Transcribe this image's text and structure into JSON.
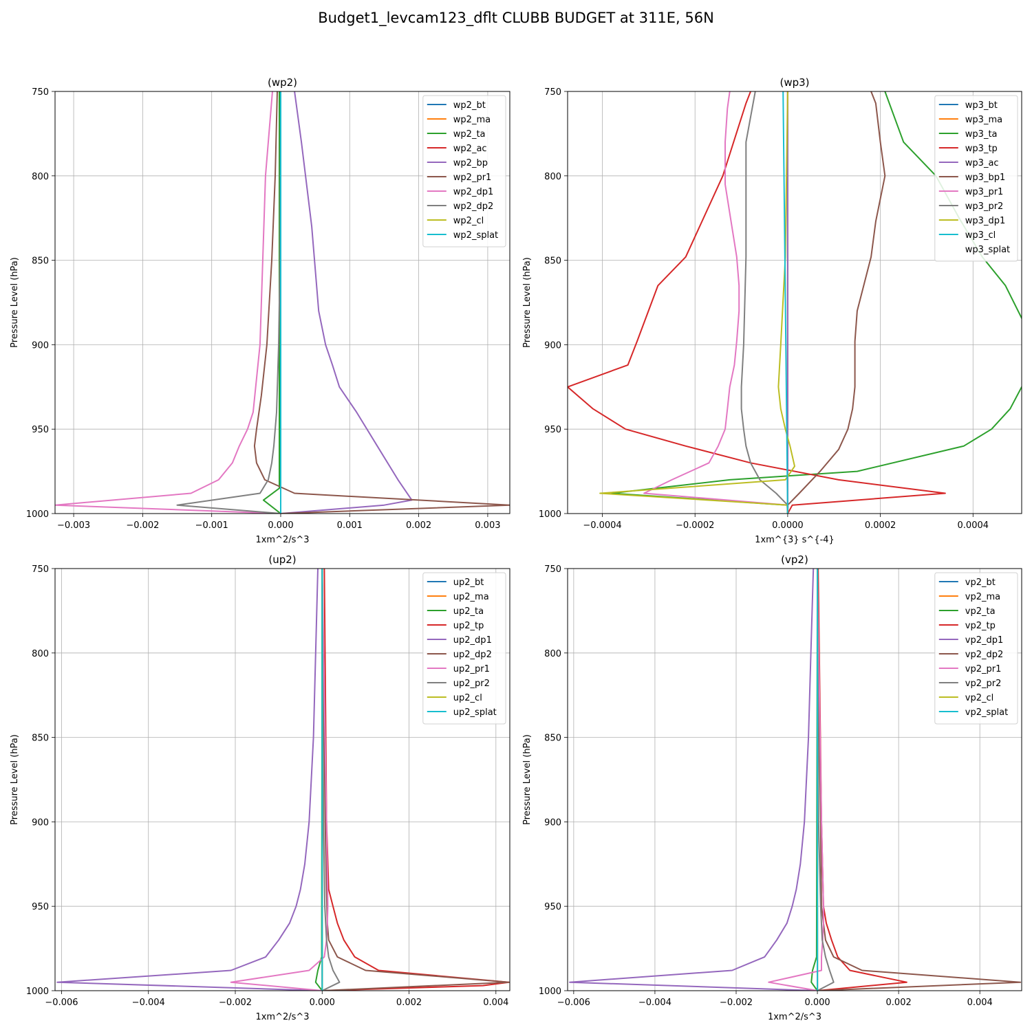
{
  "figure": {
    "title": "Budget1_levcam123_dflt CLUBB BUDGET at 311E, 56N"
  },
  "colors": [
    "#1f77b4",
    "#ff7f0e",
    "#2ca02c",
    "#d62728",
    "#9467bd",
    "#8c564b",
    "#e377c2",
    "#7f7f7f",
    "#bcbd22",
    "#17becf"
  ],
  "chart_data": [
    {
      "type": "line",
      "title": "(wp2)",
      "xlabel": "1xm^2/s^3",
      "ylabel": "Pressure Level (hPa)",
      "xlim": [
        -0.00327,
        0.00332
      ],
      "ylim": [
        1000,
        750
      ],
      "xticks": [
        -0.003,
        -0.002,
        -0.001,
        0.0,
        0.001,
        0.002,
        0.003
      ],
      "xtick_labels": [
        "−0.003",
        "−0.002",
        "−0.001",
        "0.000",
        "0.001",
        "0.002",
        "0.003"
      ],
      "yticks": [
        750,
        800,
        850,
        900,
        950,
        1000
      ],
      "ytick_labels": [
        "750",
        "800",
        "850",
        "900",
        "950",
        "1000"
      ],
      "grid": true,
      "legend": "top-right",
      "series": [
        {
          "name": "wp2_bt",
          "p": [
            750,
            1000
          ],
          "x": [
            0.0,
            0.0
          ]
        },
        {
          "name": "wp2_ma",
          "p": [
            750,
            1000
          ],
          "x": [
            0.0,
            0.0
          ]
        },
        {
          "name": "wp2_ta",
          "p": [
            750,
            985,
            992,
            1000
          ],
          "x": [
            -2e-05,
            -2e-05,
            -0.00025,
            0.0
          ]
        },
        {
          "name": "wp2_ac",
          "p": [
            750,
            1000
          ],
          "x": [
            0.0,
            0.0
          ]
        },
        {
          "name": "wp2_bp",
          "p": [
            750,
            780,
            830,
            880,
            900,
            912,
            925,
            940,
            960,
            980,
            992,
            995,
            1000
          ],
          "x": [
            0.0002,
            0.0003,
            0.00045,
            0.00055,
            0.00065,
            0.00075,
            0.00085,
            0.0011,
            0.0014,
            0.0017,
            0.0019,
            0.0015,
            0.0
          ],
          "color": "#9467bd"
        },
        {
          "name": "wp2_pr1",
          "p": [
            750,
            800,
            850,
            900,
            930,
            950,
            960,
            970,
            980,
            988,
            995,
            1000
          ],
          "x": [
            -5e-05,
            -8e-05,
            -0.00013,
            -0.0002,
            -0.00028,
            -0.00035,
            -0.00038,
            -0.00035,
            -0.00023,
            0.0002,
            0.00332,
            0.0
          ],
          "color": "#8c564b"
        },
        {
          "name": "wp2_dp1",
          "p": [
            750,
            800,
            850,
            900,
            940,
            950,
            960,
            970,
            980,
            988,
            995,
            1000
          ],
          "x": [
            -0.00012,
            -0.00022,
            -0.00026,
            -0.0003,
            -0.0004,
            -0.00048,
            -0.0006,
            -0.0007,
            -0.0009,
            -0.0013,
            -0.00327,
            0.0
          ],
          "color": "#e377c2"
        },
        {
          "name": "wp2_dp2",
          "p": [
            750,
            850,
            900,
            940,
            960,
            970,
            980,
            988,
            995,
            1000
          ],
          "x": [
            0.0,
            -1e-05,
            -3e-05,
            -6e-05,
            -0.0001,
            -0.00013,
            -0.00018,
            -0.0003,
            -0.0015,
            0.0
          ],
          "color": "#7f7f7f"
        },
        {
          "name": "wp2_cl",
          "p": [
            750,
            1000
          ],
          "x": [
            0.0,
            0.0
          ]
        },
        {
          "name": "wp2_splat",
          "p": [
            750,
            1000
          ],
          "x": [
            0.0,
            0.0
          ]
        }
      ]
    },
    {
      "type": "line",
      "title": "(wp3)",
      "xlabel": "1xm^{3} s^{-4}",
      "ylabel": "Pressure Level (hPa)",
      "xlim": [
        -0.000475,
        0.000505
      ],
      "ylim": [
        1000,
        750
      ],
      "xticks": [
        -0.0004,
        -0.0002,
        0.0,
        0.0002,
        0.0004
      ],
      "xtick_labels": [
        "−0.0004",
        "−0.0002",
        "0.0000",
        "0.0002",
        "0.0004"
      ],
      "yticks": [
        750,
        800,
        850,
        900,
        950,
        1000
      ],
      "ytick_labels": [
        "750",
        "800",
        "850",
        "900",
        "950",
        "1000"
      ],
      "grid": true,
      "legend": "top-right",
      "series": [
        {
          "name": "wp3_bt",
          "p": [
            750,
            1000
          ],
          "x": [
            0.0,
            0.0
          ]
        },
        {
          "name": "wp3_ma",
          "p": [
            750,
            1000
          ],
          "x": [
            0.0,
            0.0
          ]
        },
        {
          "name": "wp3_ta",
          "p": [
            750,
            780,
            800,
            825,
            848,
            865,
            898,
            912,
            925,
            938,
            950,
            960,
            975,
            980,
            988,
            995,
            1000
          ],
          "x": [
            0.00021,
            0.00025,
            0.00032,
            0.00037,
            0.00042,
            0.00047,
            0.00053,
            0.00055,
            0.000505,
            0.00048,
            0.00044,
            0.00038,
            0.00015,
            -0.000125,
            -0.00038,
            -1e-06,
            0.0
          ],
          "color": "#2ca02c"
        },
        {
          "name": "wp3_tp",
          "p": [
            750,
            757,
            800,
            848,
            865,
            898,
            912,
            925,
            938,
            950,
            960,
            970,
            980,
            988,
            995,
            1000
          ],
          "x": [
            -8e-05,
            -9e-05,
            -0.00014,
            -0.00022,
            -0.00028,
            -0.000325,
            -0.000345,
            -0.000475,
            -0.00042,
            -0.00035,
            -0.00022,
            -8e-05,
            0.00011,
            0.00034,
            1e-05,
            0.0
          ],
          "color": "#d62728"
        },
        {
          "name": "wp3_ac",
          "p": [
            750,
            1000
          ],
          "x": [
            0.0,
            0.0
          ]
        },
        {
          "name": "wp3_bp1",
          "p": [
            750,
            757,
            780,
            800,
            827,
            848,
            880,
            898,
            912,
            925,
            938,
            950,
            962,
            975,
            988,
            995,
            1000
          ],
          "x": [
            0.00018,
            0.00019,
            0.0002,
            0.00021,
            0.00019,
            0.00018,
            0.00015,
            0.000145,
            0.000145,
            0.000145,
            0.00014,
            0.00013,
            0.00011,
            7e-05,
            2.5e-05,
            0.0,
            0.0
          ],
          "color": "#8c564b"
        },
        {
          "name": "wp3_pr1",
          "p": [
            750,
            760,
            780,
            805,
            848,
            865,
            880,
            898,
            912,
            925,
            938,
            950,
            960,
            970,
            980,
            988,
            995,
            1000
          ],
          "x": [
            -0.000125,
            -0.00013,
            -0.000135,
            -0.000135,
            -0.00011,
            -0.000105,
            -0.000105,
            -0.00011,
            -0.000115,
            -0.000125,
            -0.00013,
            -0.000135,
            -0.00015,
            -0.00017,
            -0.00025,
            -0.00031,
            1e-06,
            0.0
          ],
          "color": "#e377c2"
        },
        {
          "name": "wp3_pr2",
          "p": [
            750,
            780,
            805,
            848,
            900,
            925,
            938,
            950,
            960,
            970,
            980,
            988,
            995,
            1000
          ],
          "x": [
            -7e-05,
            -9e-05,
            -9e-05,
            -9e-05,
            -9.5e-05,
            -0.0001,
            -0.0001,
            -9.5e-05,
            -9e-05,
            -8e-05,
            -6e-05,
            -2.5e-05,
            0.0,
            0.0
          ],
          "color": "#7f7f7f"
        },
        {
          "name": "wp3_dp1",
          "p": [
            750,
            848,
            900,
            925,
            938,
            950,
            960,
            972,
            980,
            988,
            995,
            1000
          ],
          "x": [
            0.0,
            -5e-06,
            -1.5e-05,
            -2e-05,
            -1.5e-05,
            -5e-06,
            5e-06,
            1.5e-05,
            -5e-06,
            -0.000405,
            0.0,
            0.0
          ],
          "color": "#bcbd22"
        },
        {
          "name": "wp3_cl",
          "p": [
            750,
            1000
          ],
          "x": [
            -1e-05,
            0.0
          ]
        },
        {
          "name": "wp3_splat",
          "p": [
            750,
            1000
          ],
          "x": [
            0.0,
            0.0
          ]
        }
      ]
    },
    {
      "type": "line",
      "title": "(up2)",
      "xlabel": "1xm^2/s^3",
      "ylabel": "Pressure Level (hPa)",
      "xlim": [
        -0.00615,
        0.00432
      ],
      "ylim": [
        1000,
        750
      ],
      "xticks": [
        -0.006,
        -0.004,
        -0.002,
        0.0,
        0.002,
        0.004
      ],
      "xtick_labels": [
        "−0.006",
        "−0.004",
        "−0.002",
        "0.000",
        "0.002",
        "0.004"
      ],
      "yticks": [
        750,
        800,
        850,
        900,
        950,
        1000
      ],
      "ytick_labels": [
        "750",
        "800",
        "850",
        "900",
        "950",
        "1000"
      ],
      "grid": true,
      "legend": "top-right",
      "series": [
        {
          "name": "up2_bt",
          "p": [
            750,
            1000
          ],
          "x": [
            0.0,
            0.0
          ]
        },
        {
          "name": "up2_ma",
          "p": [
            750,
            1000
          ],
          "x": [
            0.0,
            0.0
          ]
        },
        {
          "name": "up2_ta",
          "p": [
            750,
            980,
            988,
            995,
            1000
          ],
          "x": [
            0.0,
            -1e-05,
            -0.0001,
            -0.00015,
            0.0
          ],
          "color": "#2ca02c"
        },
        {
          "name": "up2_tp",
          "p": [
            750,
            900,
            940,
            950,
            960,
            970,
            980,
            988,
            995,
            997,
            1000
          ],
          "x": [
            5e-05,
            0.0001,
            0.00015,
            0.00025,
            0.00035,
            0.0005,
            0.00075,
            0.0013,
            0.0043,
            0.0037,
            0.0
          ],
          "color": "#d62728"
        },
        {
          "name": "up2_dp1",
          "p": [
            750,
            800,
            850,
            900,
            925,
            940,
            950,
            960,
            970,
            980,
            988,
            995,
            1000
          ],
          "x": [
            -0.0001,
            -0.00015,
            -0.0002,
            -0.0003,
            -0.0004,
            -0.0005,
            -0.0006,
            -0.00075,
            -0.001,
            -0.0013,
            -0.0021,
            -0.0061,
            0.0
          ],
          "color": "#9467bd"
        },
        {
          "name": "up2_dp2",
          "p": [
            750,
            850,
            900,
            940,
            960,
            970,
            980,
            988,
            995,
            1000
          ],
          "x": [
            0.0,
            5e-05,
            7e-05,
            0.0001,
            0.00012,
            0.00015,
            0.00035,
            0.001,
            0.0043,
            0.0
          ],
          "color": "#8c564b"
        },
        {
          "name": "up2_pr1",
          "p": [
            750,
            900,
            950,
            960,
            970,
            980,
            988,
            995,
            1000
          ],
          "x": [
            0.0,
            0.0001,
            0.00013,
            0.00012,
            0.0001,
            5e-05,
            -0.0003,
            -0.0021,
            0.0
          ],
          "color": "#e377c2"
        },
        {
          "name": "up2_pr2",
          "p": [
            750,
            900,
            950,
            970,
            980,
            988,
            995,
            1000
          ],
          "x": [
            0.0,
            3e-05,
            6e-05,
            0.0001,
            0.00015,
            0.00025,
            0.0004,
            0.0
          ],
          "color": "#7f7f7f"
        },
        {
          "name": "up2_cl",
          "p": [
            750,
            1000
          ],
          "x": [
            0.0,
            0.0
          ]
        },
        {
          "name": "up2_splat",
          "p": [
            750,
            1000
          ],
          "x": [
            0.0,
            0.0
          ]
        }
      ]
    },
    {
      "type": "line",
      "title": "(vp2)",
      "xlabel": "1xm^2/s^3",
      "ylabel": "Pressure Level (hPa)",
      "xlim": [
        -0.00615,
        0.00503
      ],
      "ylim": [
        1000,
        750
      ],
      "xticks": [
        -0.006,
        -0.004,
        -0.002,
        0.0,
        0.002,
        0.004
      ],
      "xtick_labels": [
        "−0.006",
        "−0.004",
        "−0.002",
        "0.000",
        "0.002",
        "0.004"
      ],
      "yticks": [
        750,
        800,
        850,
        900,
        950,
        1000
      ],
      "ytick_labels": [
        "750",
        "800",
        "850",
        "900",
        "950",
        "1000"
      ],
      "grid": true,
      "legend": "top-right",
      "series": [
        {
          "name": "vp2_bt",
          "p": [
            750,
            1000
          ],
          "x": [
            0.0,
            0.0
          ]
        },
        {
          "name": "vp2_ma",
          "p": [
            750,
            1000
          ],
          "x": [
            0.0,
            0.0
          ]
        },
        {
          "name": "vp2_ta",
          "p": [
            750,
            980,
            988,
            995,
            1000
          ],
          "x": [
            0.0,
            -2e-05,
            -0.00012,
            -0.00015,
            0.0
          ],
          "color": "#2ca02c"
        },
        {
          "name": "vp2_tp",
          "p": [
            750,
            900,
            950,
            960,
            970,
            980,
            988,
            995,
            1000
          ],
          "x": [
            2e-05,
            0.0001,
            0.00015,
            0.00022,
            0.00035,
            0.0005,
            0.0008,
            0.0022,
            0.0
          ],
          "color": "#d62728"
        },
        {
          "name": "vp2_dp1",
          "p": [
            750,
            800,
            850,
            900,
            925,
            940,
            950,
            960,
            970,
            980,
            988,
            995,
            1000
          ],
          "x": [
            -0.0001,
            -0.00016,
            -0.00022,
            -0.00032,
            -0.00042,
            -0.00052,
            -0.00062,
            -0.00075,
            -0.001,
            -0.0013,
            -0.0021,
            -0.0061,
            0.0
          ],
          "color": "#9467bd"
        },
        {
          "name": "vp2_dp2",
          "p": [
            750,
            850,
            900,
            950,
            960,
            970,
            980,
            988,
            995,
            1000
          ],
          "x": [
            0.0,
            5e-05,
            8e-05,
            0.0001,
            0.00015,
            0.0002,
            0.0004,
            0.0011,
            0.005,
            0.0
          ],
          "color": "#8c564b"
        },
        {
          "name": "vp2_pr1",
          "p": [
            750,
            900,
            950,
            960,
            970,
            980,
            988,
            995,
            1000
          ],
          "x": [
            0.0,
            0.0001,
            0.00015,
            0.00015,
            0.00013,
            0.0001,
            0.0001,
            -0.0012,
            0.0
          ],
          "color": "#e377c2"
        },
        {
          "name": "vp2_pr2",
          "p": [
            750,
            900,
            950,
            970,
            980,
            988,
            995,
            1000
          ],
          "x": [
            0.0,
            3e-05,
            8e-05,
            0.00012,
            0.0002,
            0.0003,
            0.0004,
            0.0
          ],
          "color": "#7f7f7f"
        },
        {
          "name": "vp2_cl",
          "p": [
            750,
            1000
          ],
          "x": [
            0.0,
            0.0
          ]
        },
        {
          "name": "vp2_splat",
          "p": [
            750,
            1000
          ],
          "x": [
            0.0,
            0.0
          ]
        }
      ]
    }
  ]
}
